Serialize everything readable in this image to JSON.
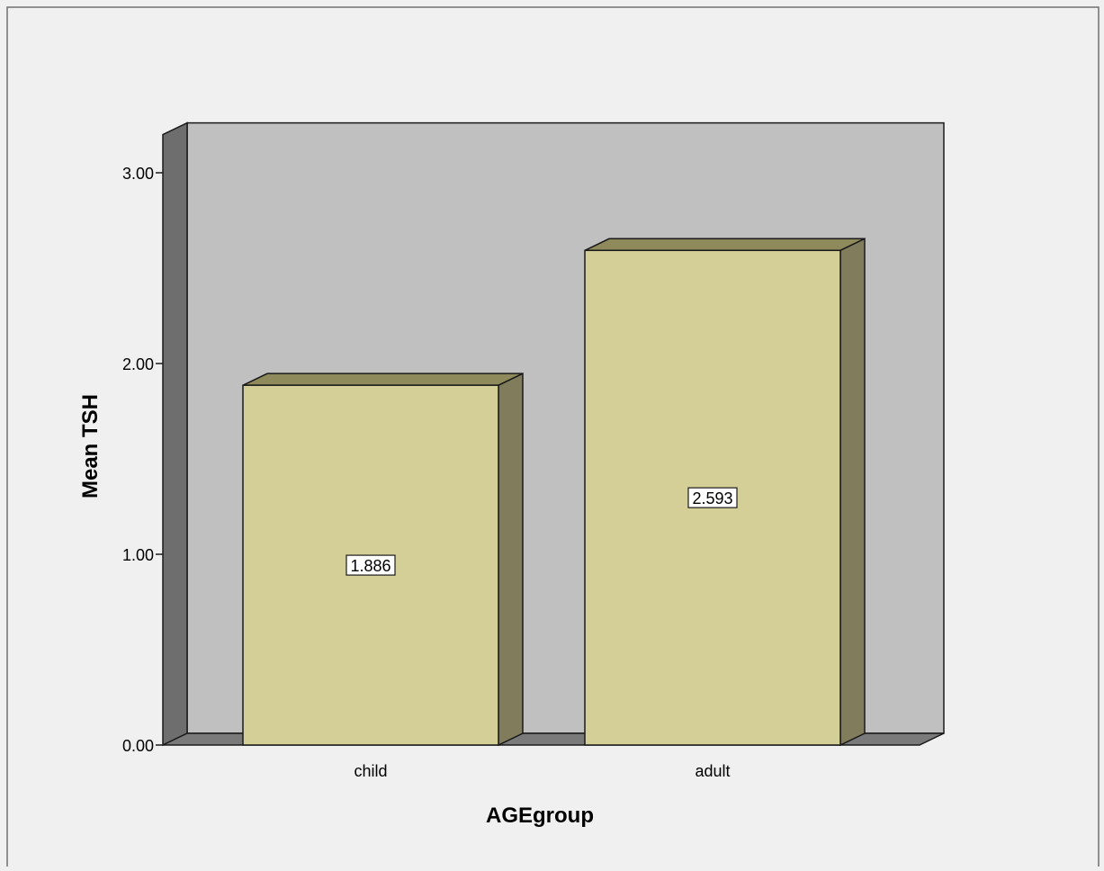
{
  "chart_data": {
    "type": "bar",
    "style": "3d",
    "title": "",
    "xlabel": "AGEgroup",
    "ylabel": "Mean TSH",
    "categories": [
      "child",
      "adult"
    ],
    "values": [
      1.886,
      2.593
    ],
    "data_labels": [
      "1.886",
      "2.593"
    ],
    "ylim": [
      0,
      3.2
    ],
    "yticks": [
      0,
      1,
      2,
      3
    ],
    "ytick_labels": [
      "0.00",
      "1.00",
      "2.00",
      "3.00"
    ],
    "grid": false,
    "legend": "none",
    "colors": {
      "page_bg": "#f0f0f0",
      "plot_bg": "#c0c0c0",
      "wall_side": "#6e6e6e",
      "floor": "#7a7a7a",
      "bar_front": "#d4cf96",
      "bar_top": "#8f8a5b",
      "bar_side": "#817d5c",
      "outline": "#1a1a1a"
    }
  }
}
